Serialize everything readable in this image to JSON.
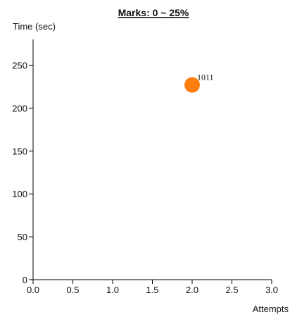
{
  "chart_data": {
    "type": "scatter",
    "title": "Marks: 0 ~ 25%",
    "xlabel": "Attempts",
    "ylabel": "Time (sec)",
    "xlim": [
      0,
      3.0
    ],
    "ylim": [
      0,
      280
    ],
    "x_ticks": [
      "0.0",
      "0.5",
      "1.0",
      "1.5",
      "2.0",
      "2.5",
      "3.0"
    ],
    "y_ticks": [
      "0",
      "50",
      "100",
      "150",
      "200",
      "250"
    ],
    "grid": false,
    "points": [
      {
        "x": 2.0,
        "y": 227,
        "label": "1011",
        "color": "#ff7f0e"
      }
    ]
  }
}
